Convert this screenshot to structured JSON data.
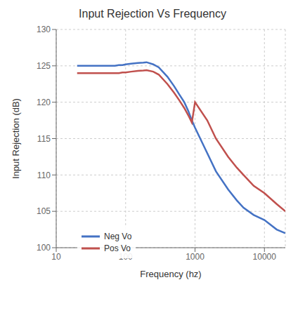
{
  "chart_data": {
    "type": "line",
    "title": "Input Rejection Vs Frequency",
    "xlabel": "Frequency (hz)",
    "ylabel": "Input Rejection (dB)",
    "x": [
      20,
      30,
      40,
      50,
      60,
      70,
      80,
      90,
      100,
      120,
      150,
      180,
      200,
      250,
      300,
      400,
      500,
      600,
      700,
      800,
      900,
      1000,
      1500,
      2000,
      3000,
      4000,
      5000,
      7000,
      10000,
      15000,
      20000
    ],
    "series": [
      {
        "name": "Neg Vo",
        "color": "#4472C4",
        "values": [
          125.0,
          125.0,
          125.0,
          125.0,
          125.0,
          125.0,
          125.1,
          125.1,
          125.2,
          125.3,
          125.4,
          125.45,
          125.5,
          125.2,
          124.8,
          123.5,
          122.2,
          121.0,
          120.0,
          118.8,
          117.5,
          116.5,
          113.0,
          110.5,
          108.0,
          106.5,
          105.5,
          104.5,
          103.8,
          102.5,
          102.0
        ]
      },
      {
        "name": "Pos Vo",
        "color": "#C0504D",
        "values": [
          124.0,
          124.0,
          124.0,
          124.0,
          124.0,
          124.0,
          124.0,
          124.1,
          124.1,
          124.2,
          124.3,
          124.35,
          124.4,
          124.2,
          123.8,
          122.5,
          121.3,
          120.2,
          119.2,
          118.2,
          117.2,
          120.0,
          117.5,
          115.0,
          112.5,
          111.0,
          110.0,
          108.5,
          107.5,
          106.0,
          105.0
        ]
      }
    ],
    "xlim": [
      10,
      20000
    ],
    "ylim": [
      100,
      130
    ],
    "xticks": [
      10,
      100,
      1000,
      10000
    ],
    "yticks": [
      100,
      105,
      110,
      115,
      120,
      125,
      130
    ],
    "log": "x",
    "grid": true,
    "legend": "lower left"
  }
}
